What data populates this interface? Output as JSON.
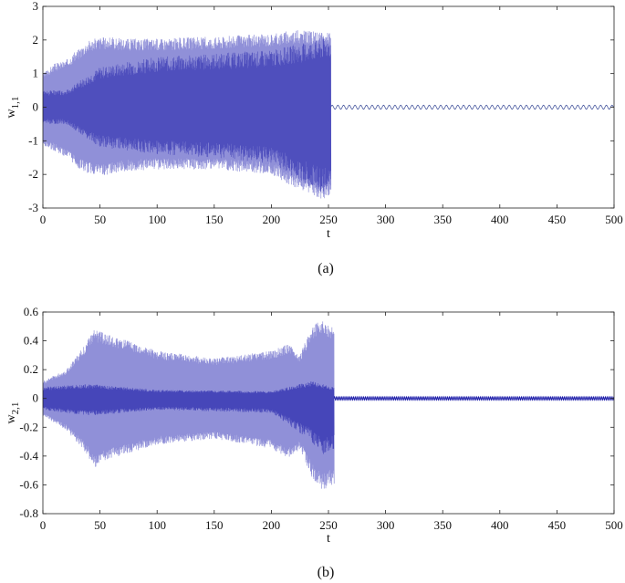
{
  "chart_data": [
    {
      "type": "line",
      "panel_label": "(a)",
      "xlabel": "t",
      "ylabel_base": "w",
      "ylabel_sub": "1,1",
      "xlim": [
        0,
        500
      ],
      "ylim": [
        -3,
        3
      ],
      "xticks": [
        0,
        50,
        100,
        150,
        200,
        250,
        300,
        350,
        400,
        450,
        500
      ],
      "yticks": [
        -3,
        -2,
        -1,
        0,
        1,
        2,
        3
      ],
      "xtick_labels": [
        "0",
        "50",
        "100",
        "150",
        "200",
        "250",
        "300",
        "350",
        "400",
        "450",
        "500"
      ],
      "ytick_labels": [
        "-3",
        "-2",
        "-1",
        "0",
        "1",
        "2",
        "3"
      ],
      "colors": {
        "dense": "#1a1aa8",
        "light": "#8a8ad6",
        "tail": "#4a5aa0"
      },
      "envelope_upper": [
        [
          0,
          1.0
        ],
        [
          10,
          1.3
        ],
        [
          20,
          1.4
        ],
        [
          30,
          1.7
        ],
        [
          40,
          2.0
        ],
        [
          50,
          2.1
        ],
        [
          75,
          2.05
        ],
        [
          100,
          2.05
        ],
        [
          150,
          2.1
        ],
        [
          200,
          2.2
        ],
        [
          220,
          2.3
        ],
        [
          240,
          2.25
        ],
        [
          252,
          2.2
        ]
      ],
      "envelope_lower": [
        [
          0,
          -1.2
        ],
        [
          10,
          -1.3
        ],
        [
          20,
          -1.5
        ],
        [
          30,
          -1.8
        ],
        [
          40,
          -2.0
        ],
        [
          50,
          -2.05
        ],
        [
          75,
          -1.9
        ],
        [
          100,
          -1.85
        ],
        [
          150,
          -1.85
        ],
        [
          200,
          -2.0
        ],
        [
          215,
          -2.3
        ],
        [
          235,
          -2.6
        ],
        [
          245,
          -2.75
        ],
        [
          252,
          -2.7
        ]
      ],
      "core_upper": [
        [
          20,
          0.5
        ],
        [
          50,
          1.2
        ],
        [
          100,
          1.5
        ],
        [
          150,
          1.6
        ],
        [
          200,
          1.7
        ],
        [
          240,
          2.0
        ],
        [
          252,
          2.1
        ]
      ],
      "core_lower": [
        [
          20,
          -0.5
        ],
        [
          50,
          -1.2
        ],
        [
          100,
          -1.4
        ],
        [
          150,
          -1.5
        ],
        [
          200,
          -1.7
        ],
        [
          240,
          -2.5
        ],
        [
          252,
          -2.6
        ]
      ],
      "decay_t": 252,
      "steady_amplitude": 0.06,
      "steady_period": 5
    },
    {
      "type": "line",
      "panel_label": "(b)",
      "xlabel": "t",
      "ylabel_base": "w",
      "ylabel_sub": "2,1",
      "xlim": [
        0,
        500
      ],
      "ylim": [
        -0.8,
        0.6
      ],
      "xticks": [
        0,
        50,
        100,
        150,
        200,
        250,
        300,
        350,
        400,
        450,
        500
      ],
      "yticks": [
        -0.8,
        -0.6,
        -0.4,
        -0.2,
        0,
        0.2,
        0.4,
        0.6
      ],
      "xtick_labels": [
        "0",
        "50",
        "100",
        "150",
        "200",
        "250",
        "300",
        "350",
        "400",
        "450",
        "500"
      ],
      "ytick_labels": [
        "-0.8",
        "-0.6",
        "-0.4",
        "-0.2",
        "0",
        "0.2",
        "0.4",
        "0.6"
      ],
      "colors": {
        "dense": "#0a0aa0",
        "light": "#8a8ad6",
        "tail": "#1a1aa8"
      },
      "envelope_upper": [
        [
          0,
          0.12
        ],
        [
          20,
          0.2
        ],
        [
          35,
          0.35
        ],
        [
          45,
          0.48
        ],
        [
          55,
          0.45
        ],
        [
          75,
          0.4
        ],
        [
          100,
          0.33
        ],
        [
          150,
          0.28
        ],
        [
          200,
          0.33
        ],
        [
          215,
          0.38
        ],
        [
          225,
          0.3
        ],
        [
          235,
          0.5
        ],
        [
          245,
          0.55
        ],
        [
          252,
          0.5
        ]
      ],
      "envelope_lower": [
        [
          0,
          -0.12
        ],
        [
          20,
          -0.22
        ],
        [
          35,
          -0.35
        ],
        [
          45,
          -0.48
        ],
        [
          55,
          -0.43
        ],
        [
          75,
          -0.38
        ],
        [
          100,
          -0.32
        ],
        [
          150,
          -0.28
        ],
        [
          200,
          -0.35
        ],
        [
          215,
          -0.42
        ],
        [
          225,
          -0.35
        ],
        [
          235,
          -0.55
        ],
        [
          245,
          -0.64
        ],
        [
          252,
          -0.6
        ]
      ],
      "core_upper": [
        [
          0,
          0.08
        ],
        [
          40,
          0.1
        ],
        [
          100,
          0.06
        ],
        [
          200,
          0.05
        ],
        [
          235,
          0.12
        ],
        [
          245,
          0.1
        ],
        [
          252,
          0.08
        ]
      ],
      "core_lower": [
        [
          0,
          -0.08
        ],
        [
          40,
          -0.12
        ],
        [
          100,
          -0.08
        ],
        [
          200,
          -0.1
        ],
        [
          235,
          -0.3
        ],
        [
          245,
          -0.4
        ],
        [
          252,
          -0.35
        ]
      ],
      "decay_t": 255,
      "steady_amplitude": 0.012,
      "steady_period": 1.5
    }
  ]
}
